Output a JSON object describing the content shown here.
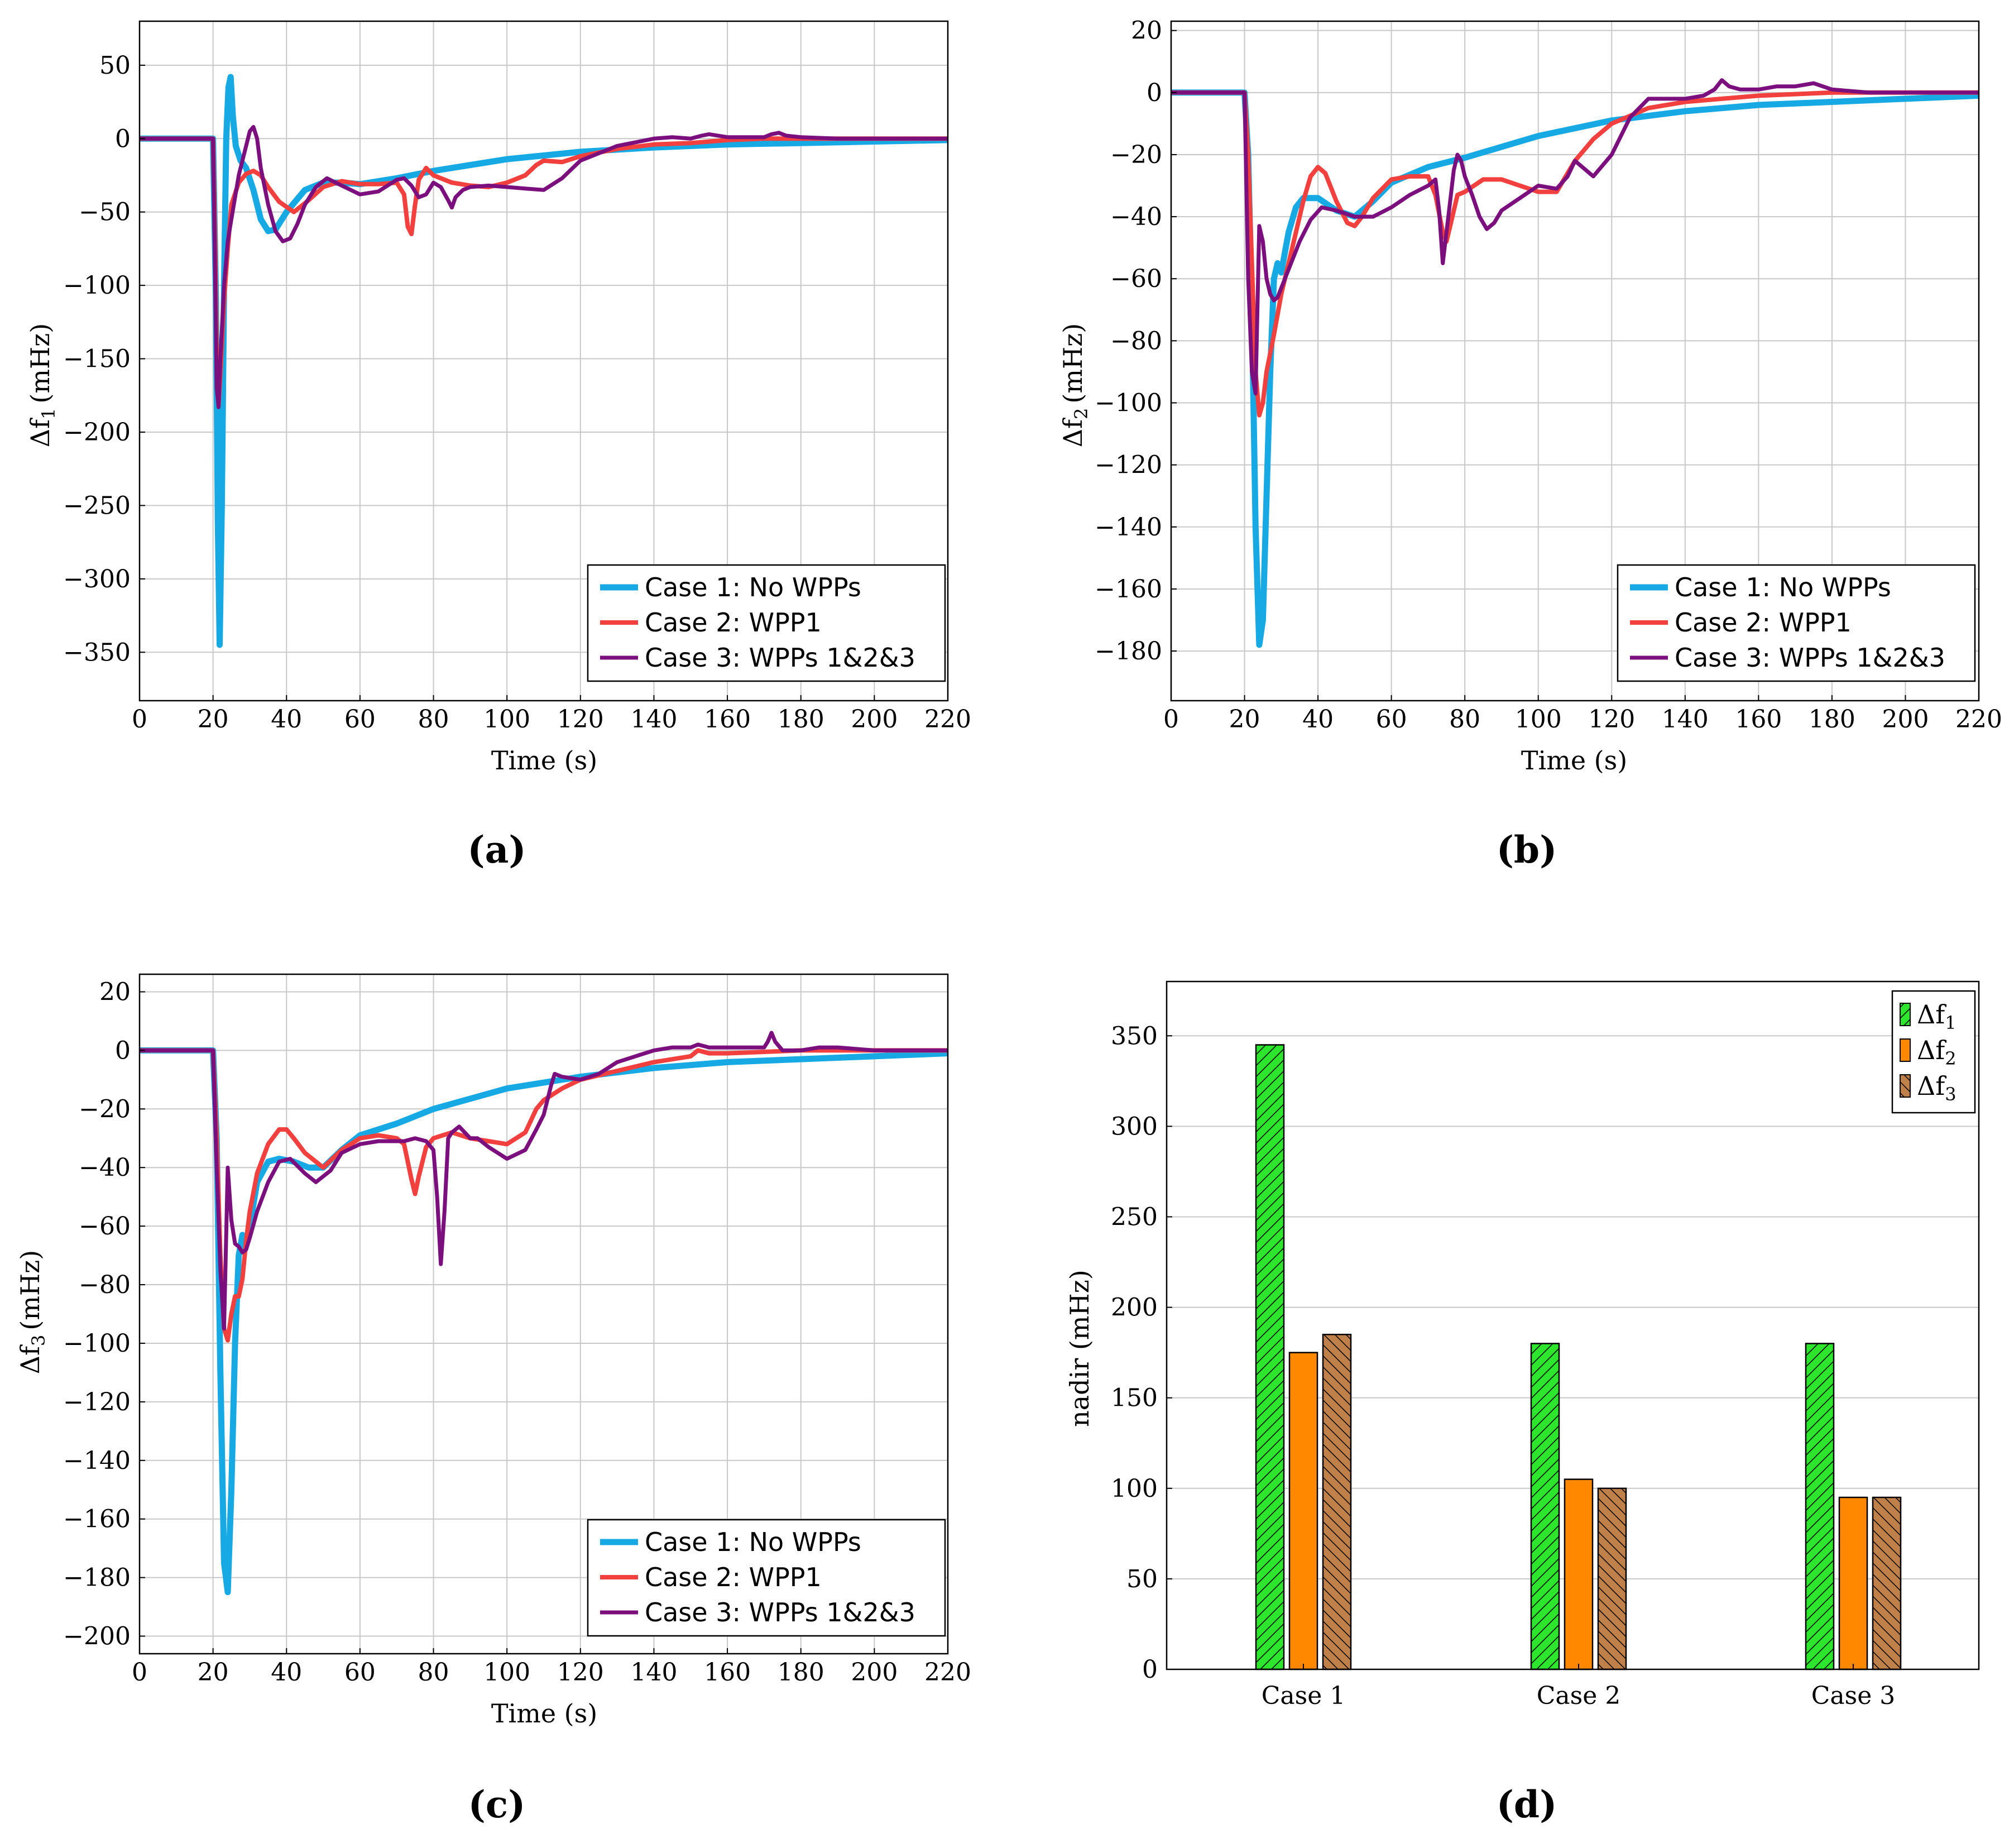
{
  "colors": {
    "case1": "#16a9e4",
    "case2": "#f2403f",
    "case3": "#7b0f7d",
    "bar_df1": "#2ee52e",
    "bar_df2": "#ff8800",
    "bar_df3": "#c0804a"
  },
  "chart_data": [
    {
      "id": "a",
      "type": "line",
      "caption": "(a)",
      "xlabel": "Time (s)",
      "ylabel_symbol": "Δf",
      "ylabel_sub": "1",
      "ylabel_unit": "(mHz)",
      "xlim": [
        0,
        220
      ],
      "ylim": [
        -383,
        80
      ],
      "xticks": [
        0,
        20,
        40,
        60,
        80,
        100,
        120,
        140,
        160,
        180,
        200,
        220
      ],
      "yticks": [
        50,
        0,
        -50,
        -100,
        -150,
        -200,
        -250,
        -300,
        -350
      ],
      "ytick_labels": [
        "50",
        "0",
        "−50",
        "−100",
        "−150",
        "−200",
        "−250",
        "−300",
        "−350"
      ],
      "legend": [
        "Case 1: No WPPs",
        "Case 2: WPP1",
        "Case 3: WPPs 1&2&3"
      ],
      "series": [
        {
          "name": "Case 1: No WPPs",
          "x": [
            0,
            20,
            20.8,
            21.3,
            21.8,
            22.4,
            23,
            23.6,
            24.2,
            24.8,
            25.4,
            26.2,
            27.5,
            29,
            31,
            33,
            35,
            37,
            40,
            45,
            50,
            55,
            60,
            70,
            80,
            100,
            120,
            140,
            160,
            180,
            200,
            220
          ],
          "y": [
            0,
            0,
            -110,
            -260,
            -345,
            -250,
            -100,
            0,
            35,
            42,
            15,
            -5,
            -15,
            -20,
            -35,
            -55,
            -63,
            -62,
            -50,
            -35,
            -30,
            -30,
            -31,
            -27,
            -22,
            -14,
            -9,
            -6,
            -4,
            -3,
            -2,
            -1
          ]
        },
        {
          "name": "Case 2: WPP1",
          "x": [
            0,
            20,
            20.5,
            21,
            21.5,
            22,
            23,
            24,
            25,
            27,
            29,
            31,
            33,
            35,
            38,
            42,
            46,
            50,
            55,
            60,
            65,
            70,
            72,
            73,
            74,
            75,
            76,
            78,
            80,
            85,
            90,
            95,
            100,
            105,
            108,
            110,
            115,
            120,
            130,
            140,
            150,
            160,
            170,
            180,
            200,
            220
          ],
          "y": [
            0,
            0,
            -60,
            -150,
            -182,
            -160,
            -110,
            -75,
            -45,
            -30,
            -24,
            -22,
            -25,
            -33,
            -43,
            -50,
            -42,
            -33,
            -29,
            -31,
            -31,
            -30,
            -38,
            -60,
            -65,
            -45,
            -28,
            -20,
            -25,
            -30,
            -32,
            -33,
            -30,
            -25,
            -18,
            -15,
            -16,
            -12,
            -7,
            -4,
            -3,
            -1,
            0,
            0,
            0,
            0
          ]
        },
        {
          "name": "Case 3: WPPs 1&2&3",
          "x": [
            0,
            20,
            20.5,
            21,
            21.5,
            22,
            23,
            24,
            25,
            26,
            27,
            28,
            29,
            30,
            31,
            32,
            33,
            35,
            37,
            39,
            41,
            43,
            45,
            48,
            51,
            55,
            60,
            65,
            70,
            72,
            74,
            76,
            78,
            80,
            82,
            84,
            85,
            86,
            88,
            90,
            95,
            100,
            105,
            110,
            115,
            120,
            130,
            140,
            145,
            150,
            153,
            155,
            160,
            165,
            170,
            172,
            174,
            176,
            180,
            190,
            200,
            220
          ],
          "y": [
            0,
            0,
            -80,
            -170,
            -183,
            -150,
            -100,
            -70,
            -55,
            -40,
            -25,
            -15,
            -5,
            5,
            8,
            0,
            -20,
            -45,
            -63,
            -70,
            -68,
            -58,
            -45,
            -33,
            -27,
            -32,
            -38,
            -36,
            -28,
            -27,
            -32,
            -40,
            -38,
            -30,
            -33,
            -42,
            -47,
            -40,
            -35,
            -33,
            -32,
            -33,
            -34,
            -35,
            -27,
            -15,
            -5,
            0,
            1,
            0,
            2,
            3,
            1,
            1,
            1,
            3,
            4,
            2,
            1,
            0,
            0,
            0
          ]
        }
      ]
    },
    {
      "id": "b",
      "type": "line",
      "caption": "(b)",
      "xlabel": "Time (s)",
      "ylabel_symbol": "Δf",
      "ylabel_sub": "2",
      "ylabel_unit": "(mHz)",
      "xlim": [
        0,
        220
      ],
      "ylim": [
        -196,
        23
      ],
      "xticks": [
        0,
        20,
        40,
        60,
        80,
        100,
        120,
        140,
        160,
        180,
        200,
        220
      ],
      "yticks": [
        20,
        0,
        -20,
        -40,
        -60,
        -80,
        -100,
        -120,
        -140,
        -160,
        -180
      ],
      "ytick_labels": [
        "20",
        "0",
        "−20",
        "−40",
        "−60",
        "−80",
        "−100",
        "−120",
        "−140",
        "−160",
        "−180"
      ],
      "legend": [
        "Case 1: No WPPs",
        "Case 2: WPP1",
        "Case 3: WPPs 1&2&3"
      ],
      "series": [
        {
          "name": "Case 1: No WPPs",
          "x": [
            0,
            20,
            21,
            22,
            23,
            24,
            25,
            26,
            27,
            28,
            29,
            30,
            32,
            34,
            36,
            40,
            45,
            50,
            55,
            60,
            70,
            80,
            100,
            120,
            140,
            160,
            180,
            200,
            220
          ],
          "y": [
            0,
            0,
            -20,
            -70,
            -140,
            -178,
            -170,
            -130,
            -90,
            -60,
            -55,
            -58,
            -45,
            -37,
            -34,
            -34,
            -38,
            -40,
            -35,
            -29,
            -24,
            -21,
            -14,
            -9,
            -6,
            -4,
            -3,
            -2,
            -1
          ]
        },
        {
          "name": "Case 2: WPP1",
          "x": [
            0,
            20,
            21,
            22,
            23,
            24,
            25,
            26,
            28,
            30,
            33,
            36,
            38,
            40,
            42,
            45,
            48,
            50,
            52,
            55,
            60,
            65,
            70,
            72,
            74,
            75,
            76,
            78,
            80,
            85,
            90,
            95,
            100,
            105,
            110,
            115,
            120,
            130,
            140,
            150,
            160,
            180,
            200,
            220
          ],
          "y": [
            0,
            0,
            -20,
            -55,
            -90,
            -104,
            -100,
            -90,
            -78,
            -65,
            -50,
            -35,
            -27,
            -24,
            -26,
            -35,
            -42,
            -43,
            -40,
            -34,
            -28,
            -27,
            -27,
            -33,
            -45,
            -48,
            -43,
            -33,
            -32,
            -28,
            -28,
            -30,
            -32,
            -32,
            -22,
            -15,
            -10,
            -5,
            -3,
            -2,
            -1,
            0,
            0,
            0
          ]
        },
        {
          "name": "Case 3: WPPs 1&2&3",
          "x": [
            0,
            20,
            20.5,
            21,
            22,
            23,
            24,
            25,
            26,
            27,
            28,
            29,
            30,
            32,
            35,
            38,
            41,
            45,
            50,
            55,
            60,
            65,
            70,
            72,
            73,
            74,
            75,
            76,
            77,
            78,
            79,
            80,
            82,
            84,
            86,
            88,
            90,
            95,
            100,
            105,
            108,
            110,
            115,
            120,
            125,
            130,
            135,
            140,
            145,
            148,
            150,
            152,
            155,
            160,
            165,
            170,
            175,
            180,
            190,
            200,
            220
          ],
          "y": [
            0,
            0,
            -30,
            -60,
            -90,
            -97,
            -43,
            -48,
            -60,
            -65,
            -67,
            -66,
            -63,
            -57,
            -48,
            -41,
            -37,
            -38,
            -40,
            -40,
            -37,
            -33,
            -30,
            -28,
            -38,
            -55,
            -45,
            -35,
            -25,
            -20,
            -22,
            -27,
            -33,
            -40,
            -44,
            -42,
            -38,
            -34,
            -30,
            -31,
            -27,
            -22,
            -27,
            -20,
            -8,
            -2,
            -2,
            -2,
            -1,
            1,
            4,
            2,
            1,
            1,
            2,
            2,
            3,
            1,
            0,
            0,
            0
          ]
        }
      ]
    },
    {
      "id": "c",
      "type": "line",
      "caption": "(c)",
      "xlabel": "Time (s)",
      "ylabel_symbol": "Δf",
      "ylabel_sub": "3",
      "ylabel_unit": "(mHz)",
      "xlim": [
        0,
        220
      ],
      "ylim": [
        -206,
        26
      ],
      "xticks": [
        0,
        20,
        40,
        60,
        80,
        100,
        120,
        140,
        160,
        180,
        200,
        220
      ],
      "yticks": [
        20,
        0,
        -20,
        -40,
        -60,
        -80,
        -100,
        -120,
        -140,
        -160,
        -180,
        -200
      ],
      "ytick_labels": [
        "20",
        "0",
        "−20",
        "−40",
        "−60",
        "−80",
        "−100",
        "−120",
        "−140",
        "−160",
        "−180",
        "−200"
      ],
      "legend": [
        "Case 1: No WPPs",
        "Case 2: WPP1",
        "Case 3: WPPs 1&2&3"
      ],
      "series": [
        {
          "name": "Case 1: No WPPs",
          "x": [
            0,
            20,
            21,
            22,
            23,
            24,
            25,
            26,
            27,
            28,
            29,
            30,
            32,
            35,
            38,
            42,
            46,
            50,
            55,
            60,
            70,
            80,
            100,
            120,
            140,
            160,
            180,
            200,
            220
          ],
          "y": [
            0,
            0,
            -30,
            -110,
            -175,
            -185,
            -150,
            -100,
            -70,
            -63,
            -66,
            -60,
            -45,
            -38,
            -37,
            -38,
            -40,
            -40,
            -34,
            -29,
            -25,
            -20,
            -13,
            -9,
            -6,
            -4,
            -3,
            -2,
            -1
          ]
        },
        {
          "name": "Case 2: WPP1",
          "x": [
            0,
            20,
            21,
            22,
            23,
            24,
            25,
            26,
            27,
            28,
            29,
            30,
            32,
            35,
            38,
            40,
            42,
            45,
            50,
            55,
            60,
            65,
            70,
            72,
            74,
            75,
            76,
            78,
            80,
            85,
            90,
            95,
            100,
            105,
            108,
            110,
            115,
            120,
            130,
            140,
            150,
            152,
            155,
            160,
            180,
            200,
            220
          ],
          "y": [
            0,
            0,
            -30,
            -70,
            -95,
            -99,
            -90,
            -84,
            -84,
            -78,
            -65,
            -55,
            -42,
            -32,
            -27,
            -27,
            -30,
            -35,
            -40,
            -34,
            -30,
            -29,
            -30,
            -32,
            -44,
            -49,
            -43,
            -33,
            -30,
            -28,
            -30,
            -31,
            -32,
            -28,
            -20,
            -17,
            -13,
            -10,
            -7,
            -4,
            -2,
            0,
            -1,
            -1,
            0,
            0,
            0
          ]
        },
        {
          "name": "Case 3: WPPs 1&2&3",
          "x": [
            0,
            20,
            21,
            22,
            23,
            24,
            25,
            26,
            27,
            28,
            29,
            30,
            32,
            35,
            38,
            41,
            45,
            48,
            52,
            55,
            60,
            65,
            70,
            72,
            75,
            78,
            80,
            81,
            82,
            83,
            84,
            85,
            87,
            90,
            92,
            95,
            100,
            105,
            108,
            110,
            112,
            113,
            115,
            120,
            125,
            130,
            135,
            140,
            145,
            150,
            152,
            155,
            160,
            165,
            170,
            171,
            172,
            173,
            175,
            180,
            185,
            190,
            200,
            220
          ],
          "y": [
            0,
            0,
            -40,
            -75,
            -95,
            -40,
            -58,
            -66,
            -67,
            -69,
            -68,
            -64,
            -55,
            -45,
            -38,
            -37,
            -42,
            -45,
            -41,
            -35,
            -32,
            -31,
            -31,
            -31,
            -30,
            -31,
            -34,
            -50,
            -73,
            -55,
            -30,
            -28,
            -26,
            -30,
            -30,
            -33,
            -37,
            -34,
            -27,
            -22,
            -12,
            -8,
            -9,
            -10,
            -8,
            -4,
            -2,
            0,
            1,
            1,
            2,
            1,
            1,
            1,
            1,
            3,
            6,
            3,
            0,
            0,
            1,
            1,
            0,
            0
          ]
        }
      ]
    },
    {
      "id": "d",
      "type": "bar",
      "caption": "(d)",
      "ylabel": "nadir (mHz)",
      "ylim": [
        0,
        380
      ],
      "yticks": [
        0,
        50,
        100,
        150,
        200,
        250,
        300,
        350
      ],
      "categories": [
        "Case 1",
        "Case 2",
        "Case 3"
      ],
      "series": [
        {
          "name": "Δf",
          "sub": "1",
          "values": [
            345,
            180,
            180
          ]
        },
        {
          "name": "Δf",
          "sub": "2",
          "values": [
            175,
            105,
            95
          ]
        },
        {
          "name": "Δf",
          "sub": "3",
          "values": [
            185,
            100,
            95
          ]
        }
      ]
    }
  ]
}
